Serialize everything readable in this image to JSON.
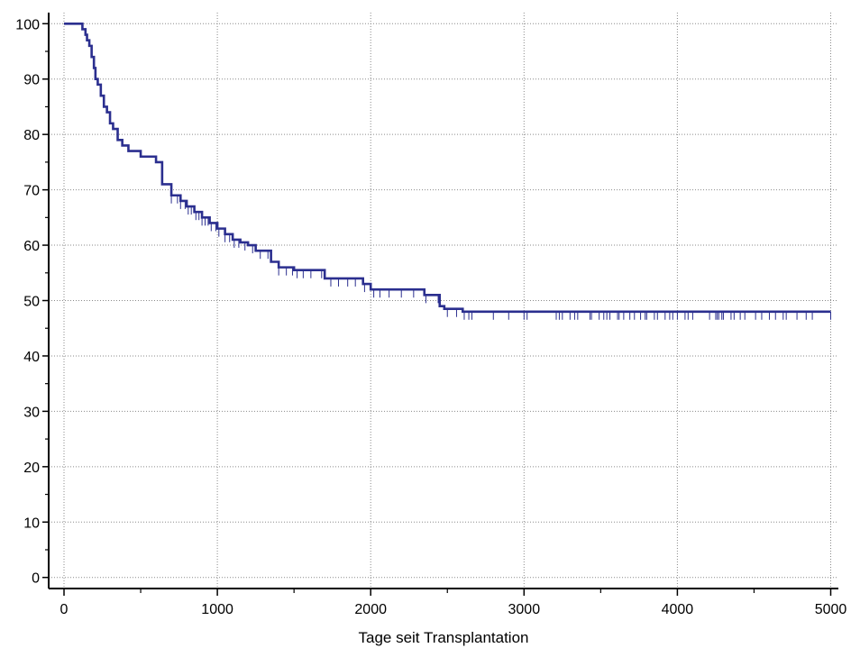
{
  "chart_data": {
    "type": "line",
    "subtype": "kaplan-meier-step",
    "title": "",
    "xlabel": "Tage seit Transplantation",
    "ylabel": "",
    "xlim": [
      -100,
      5050
    ],
    "ylim": [
      -2,
      102
    ],
    "x_ticks": [
      0,
      1000,
      2000,
      3000,
      4000,
      5000
    ],
    "y_ticks": [
      0,
      10,
      20,
      30,
      40,
      50,
      60,
      70,
      80,
      90,
      100
    ],
    "x_tick_labels": [
      "0",
      "1000",
      "2000",
      "3000",
      "4000",
      "5000"
    ],
    "y_tick_labels": [
      "0",
      "10",
      "20",
      "30",
      "40",
      "50",
      "60",
      "70",
      "80",
      "90",
      "100"
    ],
    "grid": true,
    "legend": "none",
    "series_color": "#2b2f8f",
    "series": [
      {
        "step_x": [
          0,
          120,
          140,
          150,
          165,
          180,
          195,
          205,
          220,
          240,
          260,
          280,
          300,
          320,
          350,
          380,
          420,
          500,
          600,
          640,
          700,
          760,
          800,
          850,
          900,
          950,
          1000,
          1050,
          1100,
          1150,
          1200,
          1250,
          1350,
          1400,
          1500,
          1700,
          1950,
          2000,
          2350,
          2450,
          2480,
          2600,
          5000
        ],
        "step_y": [
          100,
          99,
          98,
          97,
          96,
          94,
          92,
          90,
          89,
          87,
          85,
          84,
          82,
          81,
          79,
          78,
          77,
          76,
          75,
          71,
          69,
          68,
          67,
          66,
          65,
          64,
          63,
          62,
          61,
          60.5,
          60,
          59,
          57,
          56,
          55.5,
          54,
          53,
          52,
          51,
          49,
          48.5,
          48,
          48
        ],
        "censored_x": [
          700,
          740,
          760,
          790,
          810,
          830,
          860,
          880,
          900,
          920,
          940,
          960,
          990,
          1010,
          1050,
          1080,
          1110,
          1140,
          1180,
          1230,
          1280,
          1330,
          1400,
          1450,
          1490,
          1520,
          1560,
          1610,
          1680,
          1740,
          1790,
          1850,
          1900,
          1960,
          2020,
          2060,
          2120,
          2200,
          2280,
          2360,
          2440,
          2500,
          2560,
          2610,
          2640,
          2660,
          2800,
          2900,
          3000,
          3020,
          3210,
          3230,
          3250,
          3300,
          3330,
          3350,
          3430,
          3440,
          3490,
          3520,
          3540,
          3560,
          3610,
          3620,
          3650,
          3690,
          3720,
          3760,
          3790,
          3800,
          3850,
          3870,
          3920,
          3950,
          3970,
          4000,
          4050,
          4070,
          4100,
          4210,
          4250,
          4260,
          4270,
          4290,
          4300,
          4350,
          4370,
          4410,
          4440,
          4510,
          4550,
          4600,
          4640,
          4690,
          4710,
          4780,
          4840,
          4880,
          5000
        ]
      }
    ]
  }
}
